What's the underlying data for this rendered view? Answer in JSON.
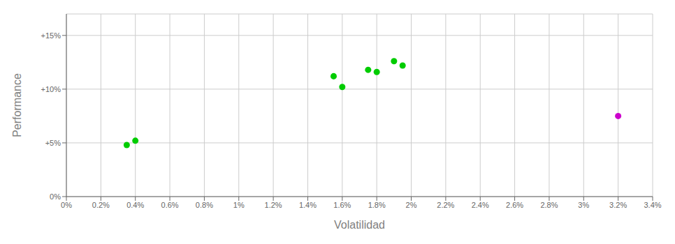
{
  "chart_data": {
    "type": "scatter",
    "xlabel": "Volatilidad",
    "ylabel": "Performance",
    "series": [
      {
        "color": "#00cc00",
        "x": [
          0.0035,
          0.004,
          0.0155,
          0.016,
          0.0175,
          0.018,
          0.019,
          0.0195
        ],
        "values": [
          0.048,
          0.052,
          0.112,
          0.102,
          0.118,
          0.116,
          0.126,
          0.122
        ]
      },
      {
        "color": "#cc00cc",
        "x": [
          0.032
        ],
        "values": [
          0.075
        ]
      }
    ],
    "xlim": [
      0.0,
      0.034
    ],
    "ylim": [
      0.0,
      0.17
    ],
    "xticks": [
      {
        "value": 0.0,
        "label": "0%"
      },
      {
        "value": 0.002,
        "label": "0.2%"
      },
      {
        "value": 0.004,
        "label": "0.4%"
      },
      {
        "value": 0.006,
        "label": "0.6%"
      },
      {
        "value": 0.008,
        "label": "0.8%"
      },
      {
        "value": 0.01,
        "label": "1%"
      },
      {
        "value": 0.012,
        "label": "1.2%"
      },
      {
        "value": 0.014,
        "label": "1.4%"
      },
      {
        "value": 0.016,
        "label": "1.6%"
      },
      {
        "value": 0.018,
        "label": "1.8%"
      },
      {
        "value": 0.02,
        "label": "2%"
      },
      {
        "value": 0.022,
        "label": "2.2%"
      },
      {
        "value": 0.024,
        "label": "2.4%"
      },
      {
        "value": 0.026,
        "label": "2.6%"
      },
      {
        "value": 0.028,
        "label": "2.8%"
      },
      {
        "value": 0.03,
        "label": "3%"
      },
      {
        "value": 0.032,
        "label": "3.2%"
      },
      {
        "value": 0.034,
        "label": "3.4%"
      }
    ],
    "yticks": [
      {
        "value": 0.0,
        "label": "0%"
      },
      {
        "value": 0.05,
        "label": "+5%"
      },
      {
        "value": 0.1,
        "label": "+10%"
      },
      {
        "value": 0.15,
        "label": "+15%"
      }
    ],
    "grid": true
  }
}
